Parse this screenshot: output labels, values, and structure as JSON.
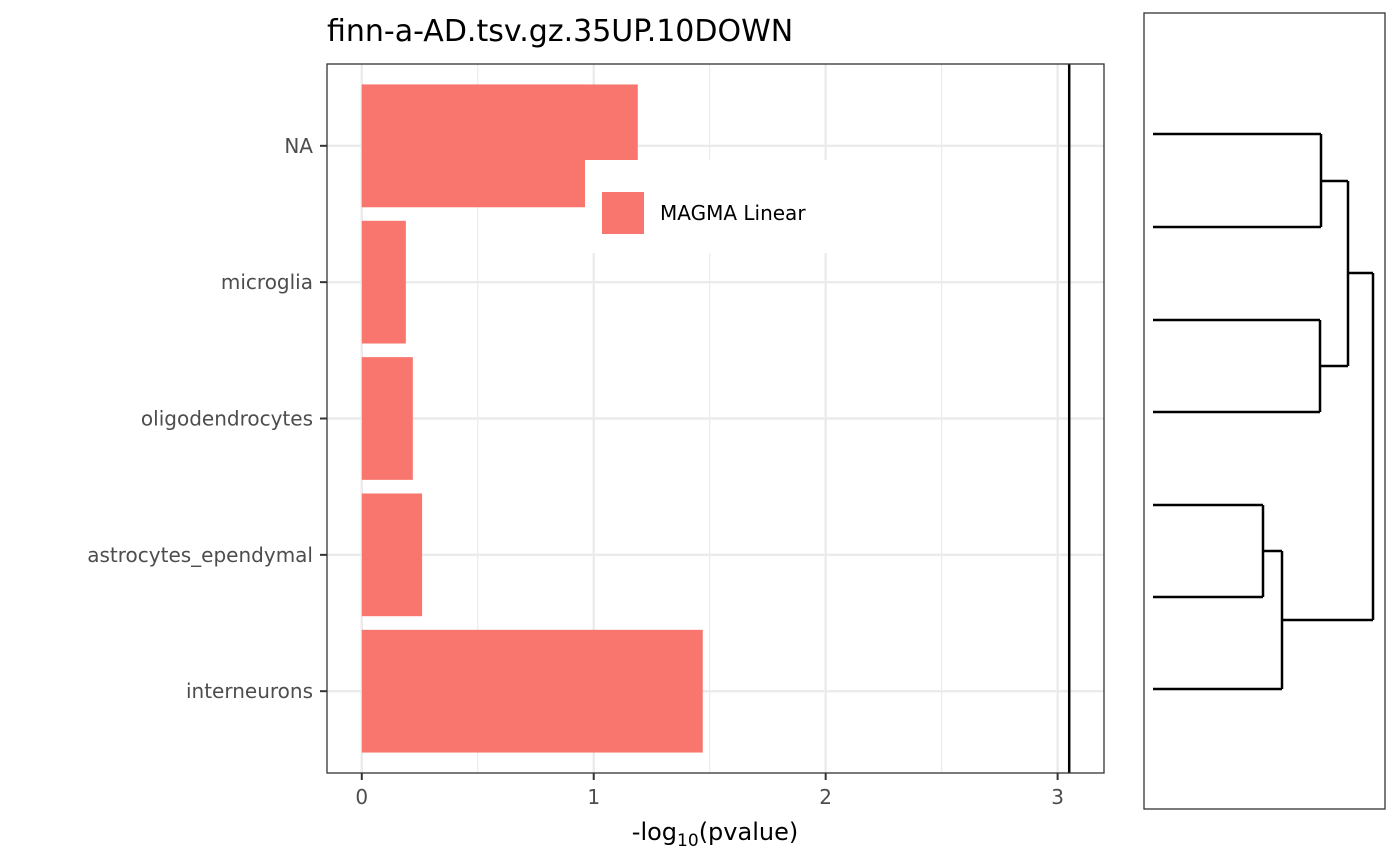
{
  "chart_data": {
    "type": "bar",
    "orientation": "horizontal",
    "title": "finn-a-AD.tsv.gz.35UP.10DOWN",
    "xlabel": {
      "prefix": "-log",
      "sub": "10",
      "suffix": "(pvalue)"
    },
    "ylabel": "",
    "categories": [
      "NA",
      "microglia",
      "oligodendrocytes",
      "astrocytes_ependymal",
      "interneurons"
    ],
    "series": [
      {
        "name": "MAGMA Linear",
        "color": "#F8766D",
        "values": [
          [
            1.19,
            0.96
          ],
          [
            0.19
          ],
          [
            0.22
          ],
          [
            0.26
          ],
          [
            1.47
          ]
        ]
      }
    ],
    "xlim": [
      -0.15,
      3.2
    ],
    "xticks": [
      "0",
      "1",
      "2",
      "3"
    ],
    "xtick_values": [
      0,
      1,
      2,
      3
    ],
    "minor_grid_values": [
      0.5,
      1.5,
      2.5
    ],
    "threshold_line": 3.05,
    "grid": true,
    "legend_position": "inside-top-center",
    "dendrogram": {
      "leaves": 5,
      "panel": "right"
    }
  }
}
